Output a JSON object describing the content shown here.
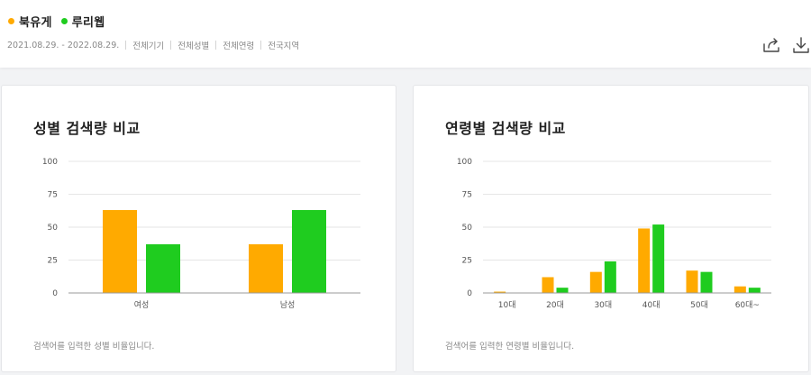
{
  "header": {
    "legend": [
      {
        "label": "북유게",
        "color": "#ffaa00"
      },
      {
        "label": "루리웹",
        "color": "#1fcc1f"
      }
    ],
    "filters": [
      "2021.08.29. - 2022.08.29.",
      "전체기기",
      "전체성별",
      "전체연령",
      "전국지역"
    ],
    "share_icon": "share-icon",
    "download_icon": "download-icon"
  },
  "gender_card": {
    "title": "성별 검색량 비교",
    "note": "검색어를 입력한 성별 비율입니다."
  },
  "age_card": {
    "title": "연령별 검색량 비교",
    "note": "검색어를 입력한 연령별 비율입니다."
  },
  "chart_data": [
    {
      "type": "bar",
      "title": "성별 검색량 비교",
      "categories": [
        "여성",
        "남성"
      ],
      "series": [
        {
          "name": "북유게",
          "color": "#ffaa00",
          "values": [
            63,
            37
          ]
        },
        {
          "name": "루리웹",
          "color": "#1fcc1f",
          "values": [
            37,
            63
          ]
        }
      ],
      "yticks": [
        0,
        25,
        50,
        75,
        100
      ],
      "ylim": [
        0,
        100
      ],
      "grid": true
    },
    {
      "type": "bar",
      "title": "연령별 검색량 비교",
      "categories": [
        "10대",
        "20대",
        "30대",
        "40대",
        "50대",
        "60대~"
      ],
      "series": [
        {
          "name": "북유게",
          "color": "#ffaa00",
          "values": [
            1,
            12,
            16,
            49,
            17,
            5
          ]
        },
        {
          "name": "루리웹",
          "color": "#1fcc1f",
          "values": [
            0,
            4,
            24,
            52,
            16,
            4
          ]
        }
      ],
      "yticks": [
        0,
        25,
        50,
        75,
        100
      ],
      "ylim": [
        0,
        100
      ],
      "grid": true
    }
  ]
}
